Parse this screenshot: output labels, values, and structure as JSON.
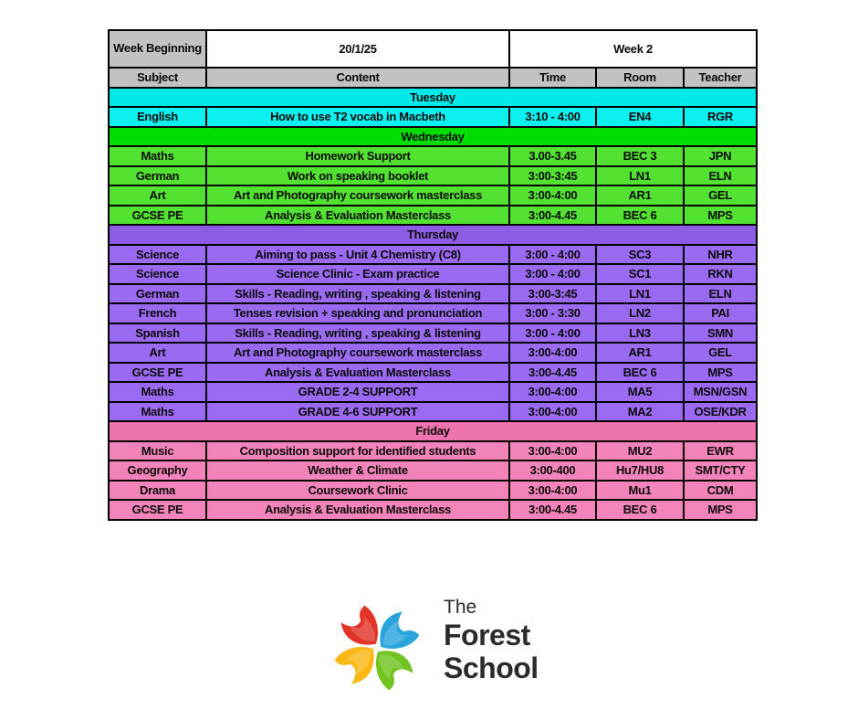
{
  "table": {
    "week_beginning_label": "Week Beginning",
    "date": "20/1/25",
    "week_label": "Week 2",
    "columns": [
      "Subject",
      "Content",
      "Time",
      "Room",
      "Teacher"
    ],
    "header_gray": "#c2c2c2",
    "sections": [
      {
        "day": "Tuesday",
        "header_color": "#00e8e8",
        "row_color": "#0cf0f0",
        "rows": [
          [
            "English",
            "How to use T2 vocab in Macbeth",
            "3:10 - 4:00",
            "EN4",
            "RGR"
          ]
        ]
      },
      {
        "day": "Wednesday",
        "header_color": "#00dd00",
        "row_color": "#53e231",
        "rows": [
          [
            "Maths",
            "Homework Support",
            "3.00-3.45",
            "BEC 3",
            "JPN"
          ],
          [
            "German",
            "Work on speaking booklet",
            "3:00-3:45",
            "LN1",
            "ELN"
          ],
          [
            "Art",
            "Art and Photography coursework masterclass",
            "3:00-4:00",
            "AR1",
            "GEL"
          ],
          [
            "GCSE PE",
            "Analysis & Evaluation Masterclass",
            "3:00-4.45",
            "BEC 6",
            "MPS"
          ]
        ]
      },
      {
        "day": "Thursday",
        "header_color": "#8d5ce5",
        "row_color": "#9a6af2",
        "rows": [
          [
            "Science",
            "Aiming to pass - Unit 4 Chemistry (C8)",
            "3:00 - 4:00",
            "SC3",
            "NHR"
          ],
          [
            "Science",
            "Science Clinic - Exam practice",
            "3:00 - 4:00",
            "SC1",
            "RKN"
          ],
          [
            "German",
            "Skills - Reading, writing , speaking & listening",
            "3:00-3:45",
            "LN1",
            "ELN"
          ],
          [
            "French",
            "Tenses revision + speaking and pronunciation",
            "3:00 - 3:30",
            "LN2",
            "PAI"
          ],
          [
            "Spanish",
            "Skills - Reading, writing , speaking & listening",
            "3:00 - 4:00",
            "LN3",
            "SMN"
          ],
          [
            "Art",
            "Art and Photography coursework masterclass",
            "3:00-4:00",
            "AR1",
            "GEL"
          ],
          [
            "GCSE PE",
            "Analysis & Evaluation Masterclass",
            "3:00-4.45",
            "BEC 6",
            "MPS"
          ],
          [
            "Maths",
            "GRADE 2-4 SUPPORT",
            "3:00-4:00",
            "MA5",
            "MSN/GSN"
          ],
          [
            "Maths",
            "GRADE 4-6 SUPPORT",
            "3:00-4:00",
            "MA2",
            "OSE/KDR"
          ]
        ]
      },
      {
        "day": "Friday",
        "header_color": "#ef74ad",
        "row_color": "#f384ba",
        "rows": [
          [
            "Music",
            "Composition support for identified students",
            "3:00-4:00",
            "MU2",
            "EWR"
          ],
          [
            "Geography",
            "Weather & Climate",
            "3:00-400",
            "Hu7/HU8",
            "SMT/CTY"
          ],
          [
            "Drama",
            "Coursework Clinic",
            "3:00-4:00",
            "Mu1",
            "CDM"
          ],
          [
            "GCSE PE",
            "Analysis & Evaluation Masterclass",
            "3:00-4.45",
            "BEC 6",
            "MPS"
          ]
        ]
      }
    ]
  },
  "logo": {
    "line1": "The",
    "line2": "Forest",
    "line3": "School",
    "text_color": "#2b2b2b",
    "petal_colors": {
      "red": "#e23429",
      "blue": "#2aa4dd",
      "green": "#71c31f",
      "yellow": "#fbb815"
    }
  }
}
